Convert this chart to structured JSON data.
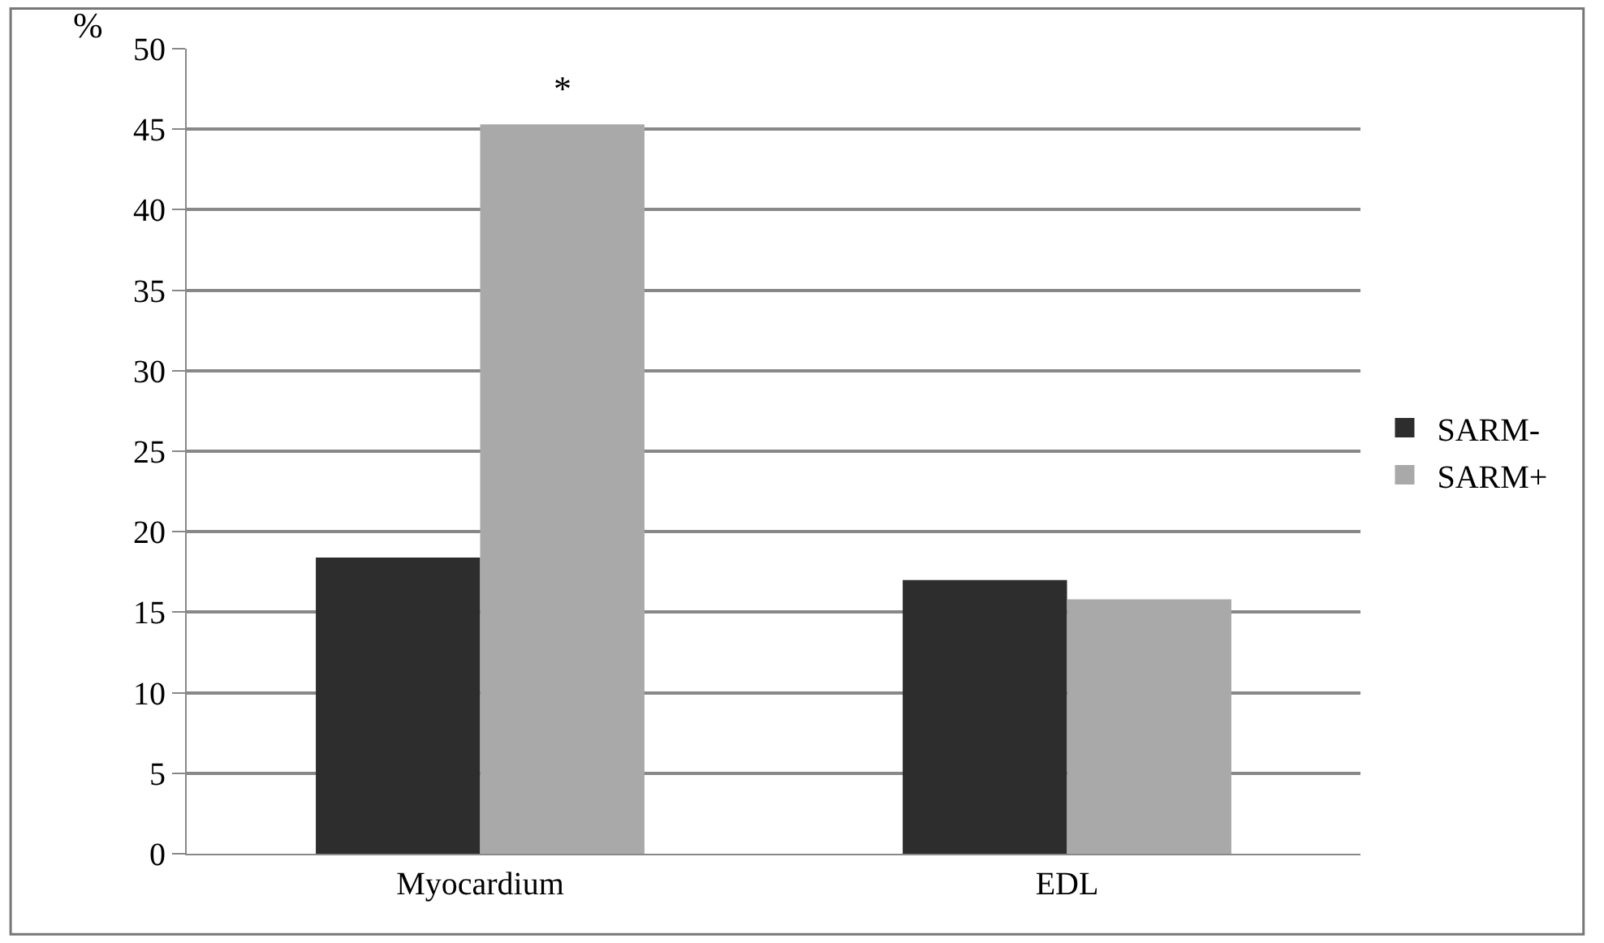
{
  "chart_data": {
    "type": "bar",
    "ylabel": "%",
    "categories": [
      "Myocardium",
      "EDL"
    ],
    "series": [
      {
        "name": "SARM-",
        "color": "#2d2d2d",
        "values": [
          18.4,
          17.0
        ]
      },
      {
        "name": "SARM+",
        "color": "#a9a9a9",
        "values": [
          45.3,
          15.8
        ]
      }
    ],
    "ylim": [
      0,
      50
    ],
    "yticks": [
      0,
      5,
      10,
      15,
      20,
      25,
      30,
      35,
      40,
      45,
      50
    ],
    "grid": "y",
    "legend": "right",
    "annotations": [
      "*"
    ]
  }
}
